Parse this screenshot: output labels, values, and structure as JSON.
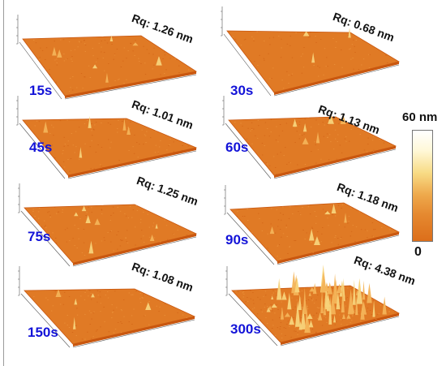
{
  "panels": [
    {
      "time": "15s",
      "rq": "Rq: 1.26 nm",
      "roughness_nm": 1.26
    },
    {
      "time": "30s",
      "rq": "Rq: 0.68 nm",
      "roughness_nm": 0.68
    },
    {
      "time": "45s",
      "rq": "Rq: 1.01 nm",
      "roughness_nm": 1.01
    },
    {
      "time": "60s",
      "rq": "Rq: 1.13 nm",
      "roughness_nm": 1.13
    },
    {
      "time": "75s",
      "rq": "Rq: 1.25 nm",
      "roughness_nm": 1.25
    },
    {
      "time": "90s",
      "rq": "Rq: 1.18 nm",
      "roughness_nm": 1.18
    },
    {
      "time": "150s",
      "rq": "Rq: 1.08 nm",
      "roughness_nm": 1.08
    },
    {
      "time": "300s",
      "rq": "Rq: 4.38 nm",
      "roughness_nm": 4.38
    }
  ],
  "colorbar": {
    "max_label": "60 nm",
    "min_label": "0"
  },
  "colors": {
    "surface_dark": "#c9570f",
    "surface": "#e07a25",
    "surface_light": "#f1a14a",
    "label_blue": "#1313d8"
  }
}
